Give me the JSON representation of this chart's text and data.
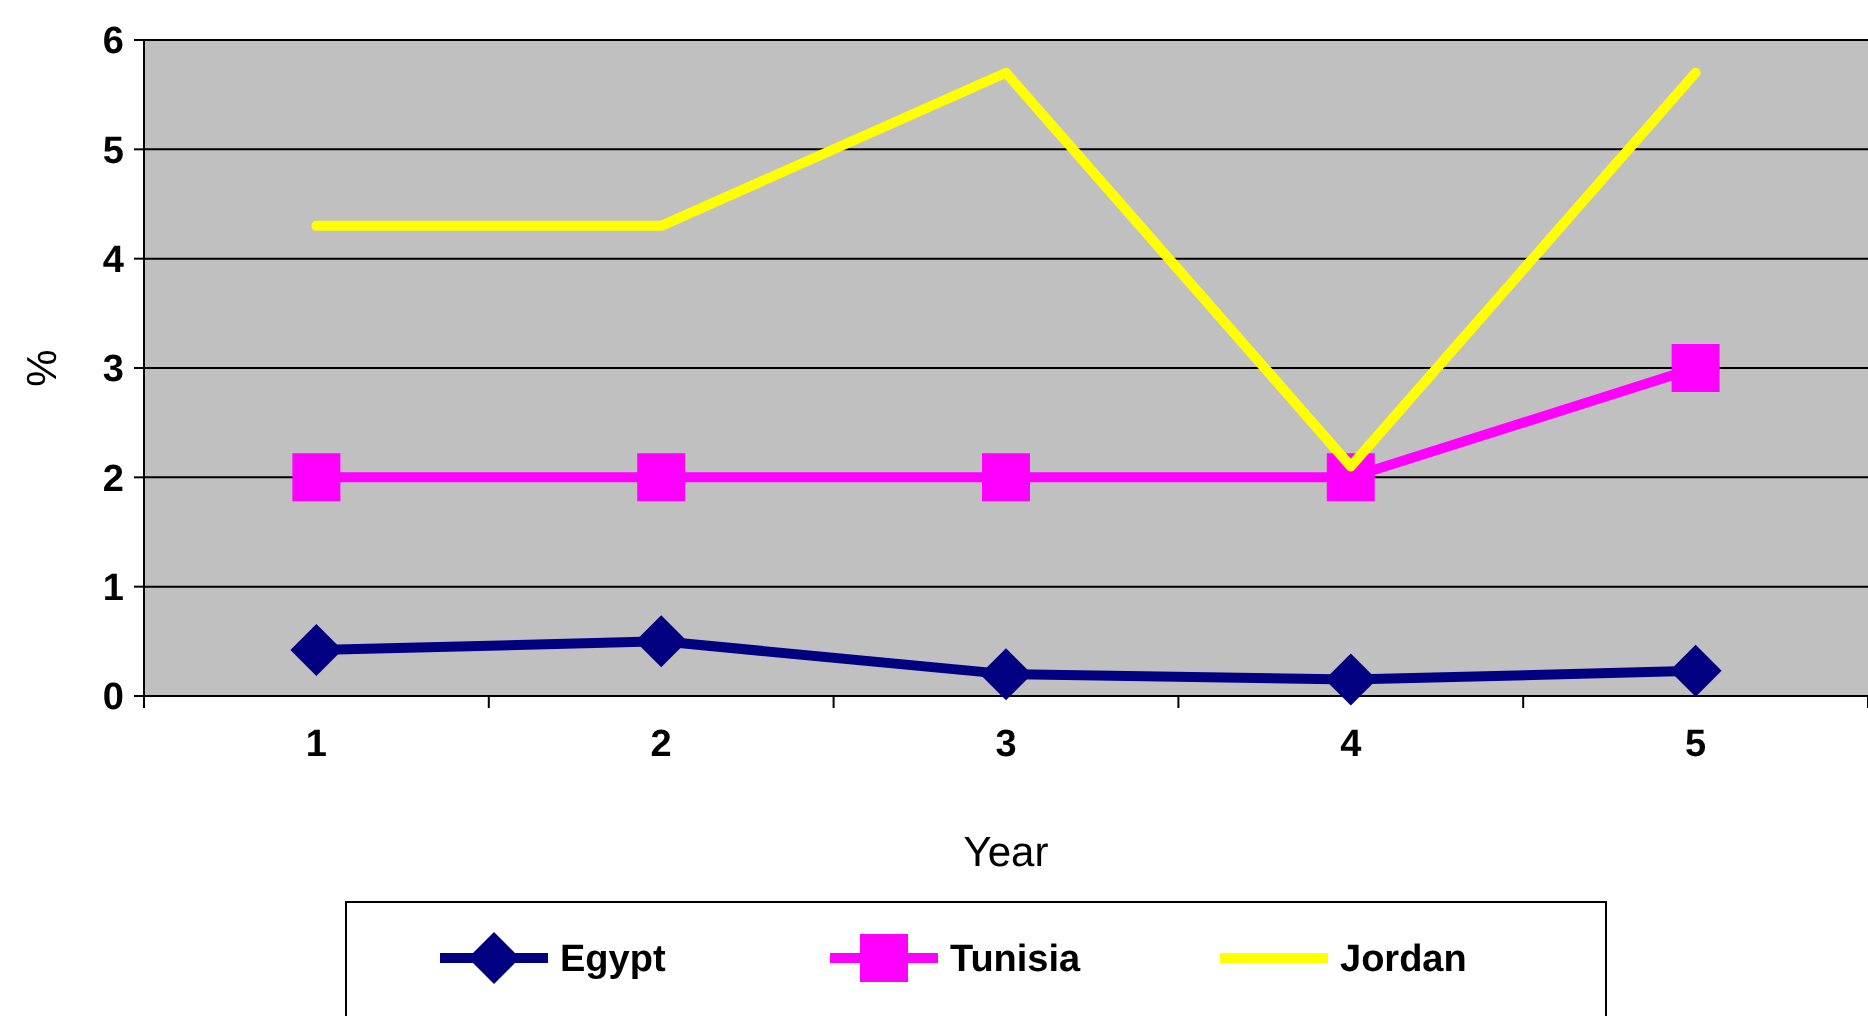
{
  "chart_data": {
    "type": "line",
    "xlabel": "Year",
    "ylabel": "%",
    "categories": [
      "1",
      "2",
      "3",
      "4",
      "5"
    ],
    "ylim": [
      0,
      6
    ],
    "yticks": [
      0,
      1,
      2,
      3,
      4,
      5,
      6
    ],
    "grid": "y",
    "legend": "bottom",
    "line_style": "solid",
    "series": [
      {
        "name": "Egypt",
        "color": "#000080",
        "marker": "diamond",
        "values": [
          0.42,
          0.5,
          0.2,
          0.15,
          0.23
        ]
      },
      {
        "name": "Tunisia",
        "color": "#ff00ff",
        "marker": "square",
        "values": [
          2,
          2,
          2,
          2,
          3
        ]
      },
      {
        "name": "Jordan",
        "color": "#ffff00",
        "marker": "none",
        "values": [
          4.3,
          4.3,
          5.7,
          2.1,
          5.7
        ]
      }
    ]
  }
}
